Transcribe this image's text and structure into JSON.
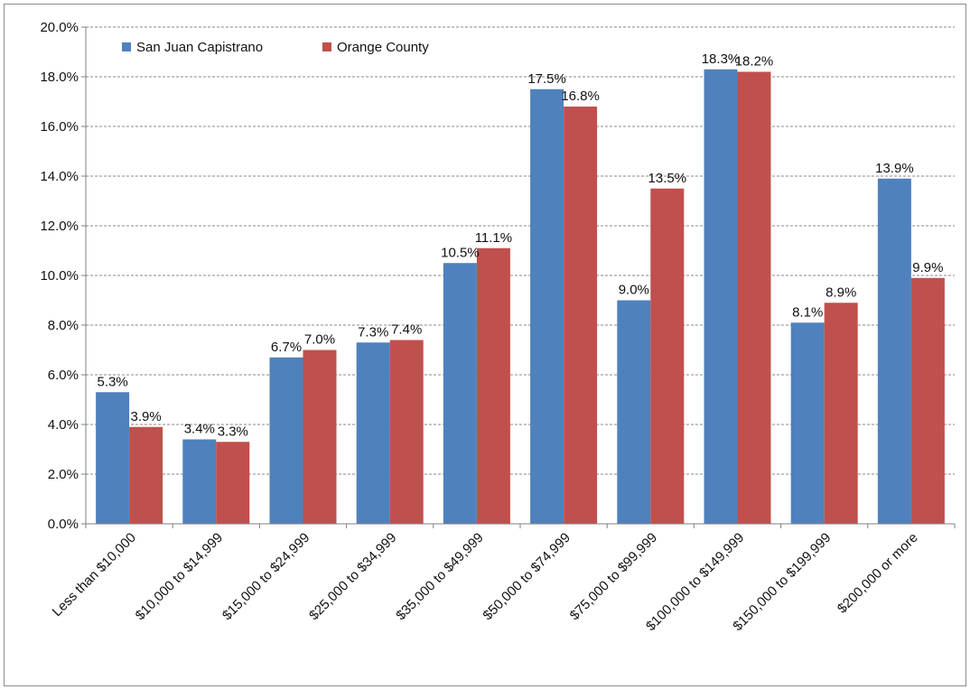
{
  "chart_data": {
    "type": "bar",
    "title": "",
    "xlabel": "",
    "ylabel": "",
    "ylim": [
      0,
      20
    ],
    "ytick_step": 2,
    "ytick_labels": [
      "0.0%",
      "2.0%",
      "4.0%",
      "6.0%",
      "8.0%",
      "10.0%",
      "12.0%",
      "14.0%",
      "16.0%",
      "18.0%",
      "20.0%"
    ],
    "grid": true,
    "legend_position": "top-left",
    "categories": [
      "Less than $10,000",
      "$10,000 to $14,999",
      "$15,000 to $24,999",
      "$25,000 to $34,999",
      "$35,000 to $49,999",
      "$50,000 to $74,999",
      "$75,000 to $99,999",
      "$100,000 to $149,999",
      "$150,000 to $199,999",
      "$200,000 or more"
    ],
    "series": [
      {
        "name": "San Juan Capistrano",
        "color": "#4f81bd",
        "values": [
          5.3,
          3.4,
          6.7,
          7.3,
          10.5,
          17.5,
          9.0,
          18.3,
          8.1,
          13.9
        ],
        "labels": [
          "5.3%",
          "3.4%",
          "6.7%",
          "7.3%",
          "10.5%",
          "17.5%",
          "9.0%",
          "18.3%",
          "8.1%",
          "13.9%"
        ]
      },
      {
        "name": "Orange County",
        "color": "#c0504d",
        "values": [
          3.9,
          3.3,
          7.0,
          7.4,
          11.1,
          16.8,
          13.5,
          18.2,
          8.9,
          9.9
        ],
        "labels": [
          "3.9%",
          "3.3%",
          "7.0%",
          "7.4%",
          "11.1%",
          "16.8%",
          "13.5%",
          "18.2%",
          "8.9%",
          "9.9%"
        ]
      }
    ]
  }
}
